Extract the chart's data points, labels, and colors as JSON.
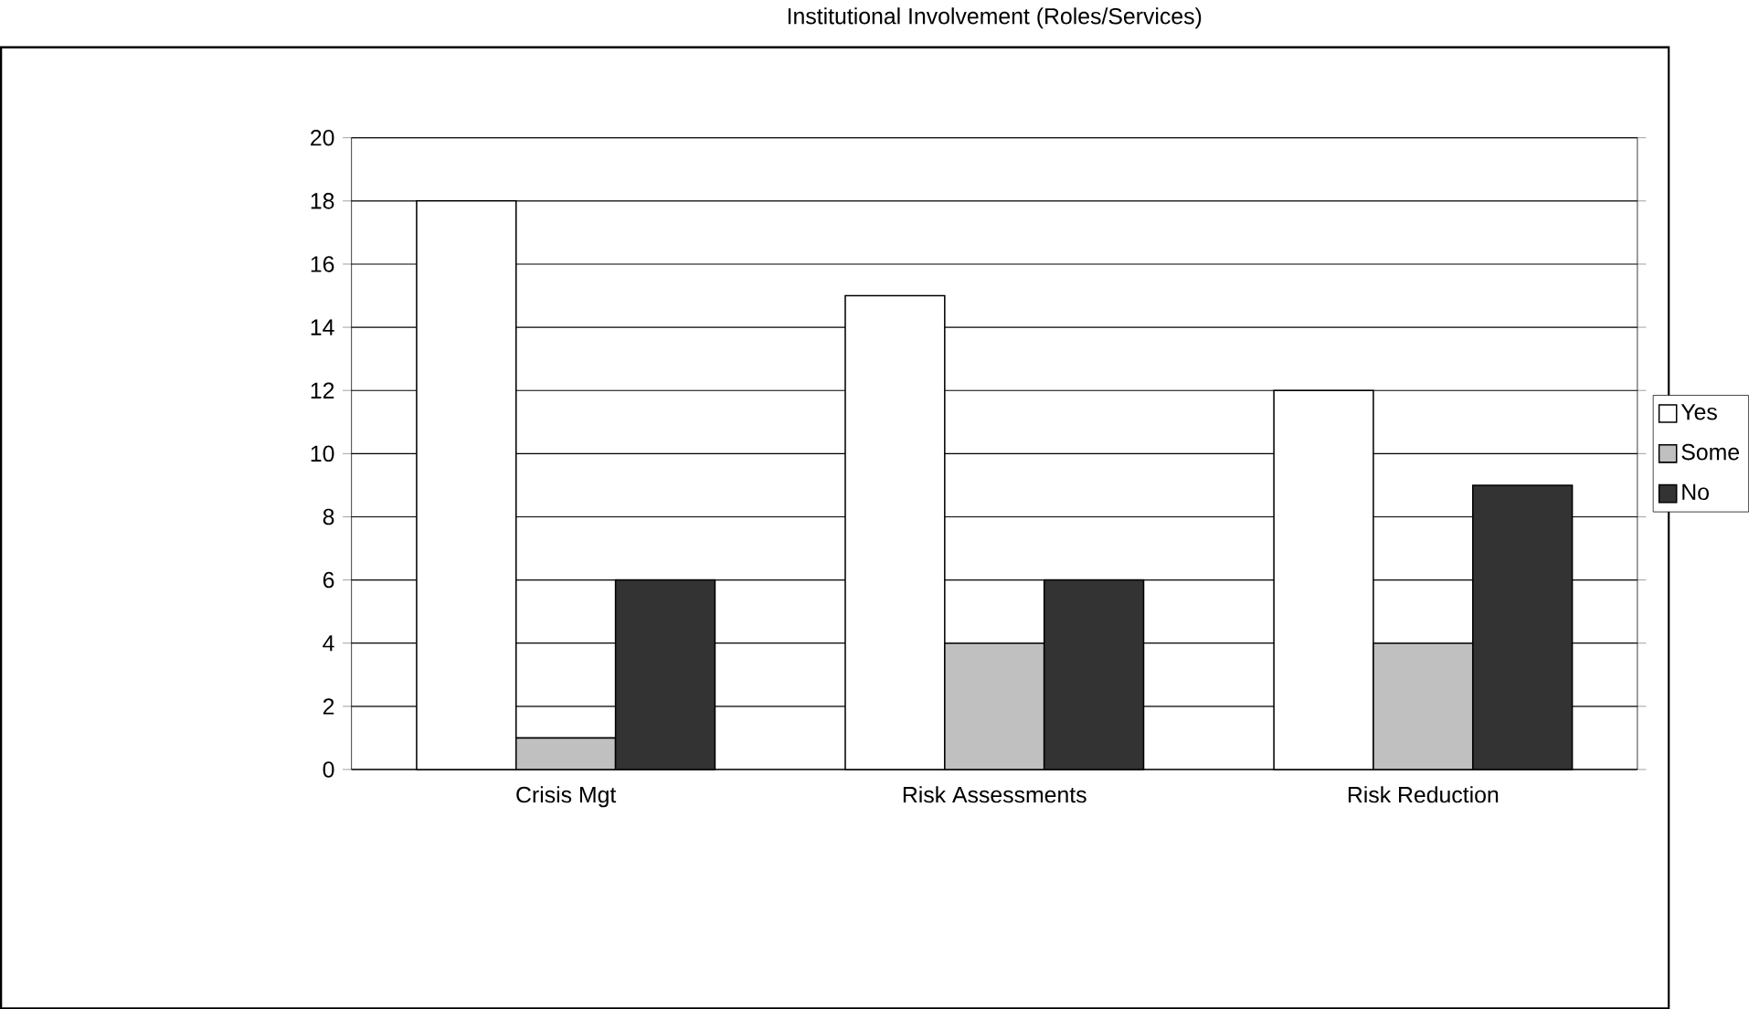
{
  "chart_data": {
    "type": "bar",
    "title": "Institutional Involvement (Roles/Services)",
    "categories": [
      "Crisis Mgt",
      "Risk Assessments",
      "Risk Reduction"
    ],
    "series": [
      {
        "name": "Yes",
        "color": "#ffffff",
        "values": [
          18,
          15,
          12
        ]
      },
      {
        "name": "Some",
        "color": "#c0c0c0",
        "values": [
          1,
          4,
          4
        ]
      },
      {
        "name": "No",
        "color": "#333333",
        "values": [
          6,
          6,
          9
        ]
      }
    ],
    "ylim": [
      0,
      20
    ],
    "yticks": [
      0,
      2,
      4,
      6,
      8,
      10,
      12,
      14,
      16,
      18,
      20
    ],
    "grid": "y",
    "legend": "right"
  }
}
